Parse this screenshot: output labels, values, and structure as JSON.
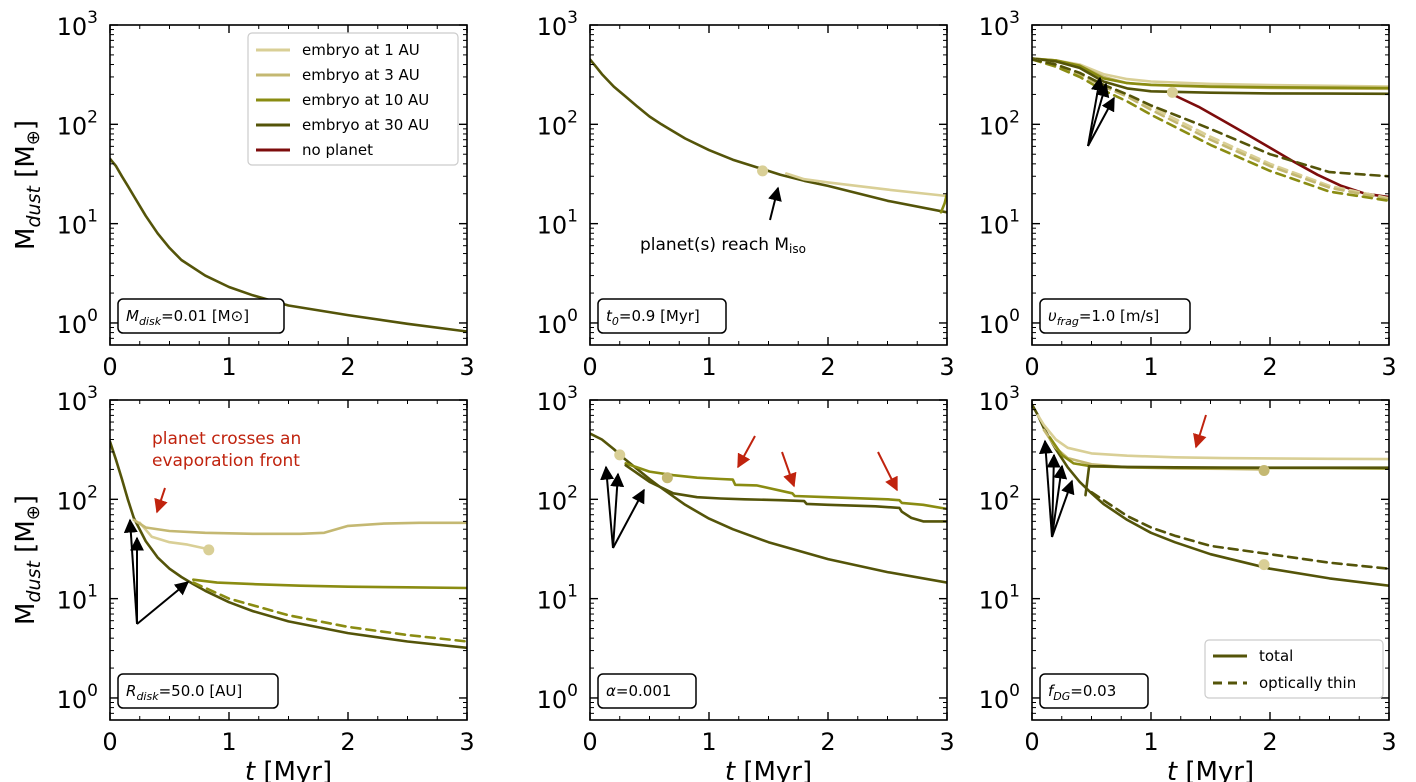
{
  "colors": {
    "embryo_1": "#d9cf96",
    "embryo_3": "#c4b872",
    "embryo_10": "#8a8c12",
    "embryo_30": "#545409",
    "no_planet": "#7d0c0c",
    "annot_red": "#c0230e",
    "annot_black": "#000000"
  },
  "axes_common": {
    "x_label_pre": "t",
    "x_label_post": " [Myr]",
    "y_label_main": "M",
    "y_label_sub": "dust",
    "y_label_post": " [M",
    "y_label_sym": "⊕",
    "y_label_end": "]",
    "x_ticks": [
      "0",
      "1",
      "2",
      "3"
    ],
    "y_ticks": [
      "10",
      "10",
      "10",
      "10"
    ],
    "y_tick_exps": [
      "0",
      "1",
      "2",
      "3"
    ]
  },
  "legend": {
    "items": [
      {
        "label": "embryo at 1 AU",
        "color_key": "embryo_1",
        "style": "solid"
      },
      {
        "label": "embryo at 3 AU",
        "color_key": "embryo_3",
        "style": "solid"
      },
      {
        "label": "embryo at 10 AU",
        "color_key": "embryo_10",
        "style": "solid"
      },
      {
        "label": "embryo at 30 AU",
        "color_key": "embryo_30",
        "style": "solid"
      },
      {
        "label": "no planet",
        "color_key": "no_planet",
        "style": "solid"
      }
    ],
    "style_items": [
      {
        "label": "total",
        "style": "solid"
      },
      {
        "label": "optically thin",
        "style": "dashed"
      }
    ]
  },
  "annotations": {
    "iso_text": "planet(s) reach M",
    "iso_sub": "iso",
    "evap_line1": "planet crosses an",
    "evap_line2": "evaporation front"
  },
  "chart_data": [
    {
      "type": "line",
      "panel": "M_disk",
      "param_label": "M",
      "param_sub": "disk",
      "param_value": "=0.01 [M",
      "param_sym": "⊙",
      "param_end": "]",
      "xlim": [
        0,
        3
      ],
      "ylim": [
        0.6,
        1000
      ],
      "yscale": "log",
      "xlabel": "",
      "ylabel": "M_dust [M_earth]",
      "series": [
        {
          "name": "total",
          "color_key": "embryo_30",
          "dash": false,
          "x": [
            0,
            0.05,
            0.1,
            0.15,
            0.2,
            0.3,
            0.4,
            0.5,
            0.6,
            0.8,
            1.0,
            1.2,
            1.5,
            2.0,
            2.5,
            3.0
          ],
          "y": [
            45,
            38,
            30,
            24,
            19,
            12,
            8.0,
            5.7,
            4.3,
            3.0,
            2.3,
            1.9,
            1.5,
            1.2,
            0.98,
            0.82
          ]
        }
      ]
    },
    {
      "type": "line",
      "panel": "t0",
      "param_label": "t",
      "param_sub": "0",
      "param_value": "=0.9 [Myr]",
      "param_sym": "",
      "param_end": "",
      "xlim": [
        0,
        3
      ],
      "ylim": [
        0.6,
        1000
      ],
      "yscale": "log",
      "series": [
        {
          "name": "total",
          "color_key": "embryo_30",
          "dash": false,
          "x": [
            0,
            0.05,
            0.1,
            0.2,
            0.3,
            0.4,
            0.5,
            0.6,
            0.8,
            1.0,
            1.2,
            1.4,
            1.6,
            1.8,
            2.0,
            2.5,
            3.0
          ],
          "y": [
            450,
            380,
            320,
            240,
            190,
            150,
            120,
            100,
            72,
            55,
            44,
            37,
            31,
            27,
            24,
            17,
            13
          ]
        },
        {
          "name": "embryo at 1 AU",
          "color_key": "embryo_1",
          "dash": false,
          "x": [
            1.65,
            1.8,
            2.0,
            2.5,
            3.0
          ],
          "y": [
            32,
            28,
            26,
            22,
            19
          ]
        },
        {
          "name": "embryo at 10 AU",
          "color_key": "embryo_10",
          "dash": false,
          "x": [
            2.95,
            2.98,
            3.0
          ],
          "y": [
            13,
            16,
            20
          ]
        }
      ],
      "markers": [
        {
          "x": 1.45,
          "y": 34,
          "color_key": "embryo_1"
        }
      ]
    },
    {
      "type": "line",
      "panel": "v_frag",
      "param_label": "υ",
      "param_sub": "frag",
      "param_value": "=1.0 [m/s]",
      "param_sym": "",
      "param_end": "",
      "xlim": [
        0,
        3
      ],
      "ylim": [
        0.6,
        1000
      ],
      "yscale": "log",
      "series": [
        {
          "name": "embryo at 1 AU",
          "color_key": "embryo_1",
          "dash": false,
          "x": [
            0,
            0.2,
            0.4,
            0.6,
            0.8,
            1.0,
            1.5,
            2.0,
            2.5,
            3.0
          ],
          "y": [
            460,
            440,
            400,
            320,
            285,
            270,
            255,
            248,
            244,
            240
          ]
        },
        {
          "name": "embryo at 3 AU",
          "color_key": "embryo_3",
          "dash": false,
          "x": [
            0,
            0.2,
            0.4,
            0.6,
            0.8,
            1.0,
            1.5,
            2.0,
            2.5,
            3.0
          ],
          "y": [
            460,
            440,
            390,
            300,
            260,
            248,
            238,
            232,
            230,
            228
          ]
        },
        {
          "name": "embryo at 10 AU",
          "color_key": "embryo_10",
          "dash": false,
          "x": [
            0,
            0.2,
            0.4,
            0.6,
            0.8,
            1.0,
            1.5,
            2.0,
            2.5,
            3.0
          ],
          "y": [
            460,
            440,
            390,
            290,
            260,
            250,
            240,
            236,
            234,
            232
          ]
        },
        {
          "name": "embryo at 30 AU",
          "color_key": "embryo_30",
          "dash": false,
          "x": [
            0,
            0.2,
            0.4,
            0.6,
            0.8,
            1.0,
            1.5,
            2.0,
            2.5,
            3.0
          ],
          "y": [
            460,
            430,
            370,
            270,
            230,
            215,
            208,
            205,
            204,
            203
          ]
        },
        {
          "name": "no planet",
          "color_key": "no_planet",
          "dash": false,
          "x": [
            1.2,
            1.4,
            1.6,
            1.8,
            2.0,
            2.2,
            2.4,
            2.6,
            2.8,
            3.0
          ],
          "y": [
            195,
            150,
            110,
            80,
            58,
            42,
            31,
            24,
            20,
            18.5
          ]
        },
        {
          "name": "embryo at 1 AU (thin)",
          "color_key": "embryo_1",
          "dash": true,
          "x": [
            0,
            0.2,
            0.4,
            0.6,
            0.8,
            1.0,
            1.5,
            2.0,
            2.5,
            3.0
          ],
          "y": [
            450,
            400,
            330,
            250,
            200,
            150,
            75,
            40,
            24,
            18
          ]
        },
        {
          "name": "embryo at 3 AU (thin)",
          "color_key": "embryo_3",
          "dash": true,
          "x": [
            0,
            0.2,
            0.4,
            0.6,
            0.8,
            1.0,
            1.5,
            2.0,
            2.5,
            3.0
          ],
          "y": [
            450,
            390,
            320,
            240,
            190,
            140,
            70,
            38,
            23,
            17.5
          ]
        },
        {
          "name": "embryo at 10 AU (thin)",
          "color_key": "embryo_10",
          "dash": true,
          "x": [
            0,
            0.2,
            0.4,
            0.6,
            0.8,
            1.0,
            1.5,
            2.0,
            2.5,
            3.0
          ],
          "y": [
            450,
            380,
            300,
            220,
            170,
            125,
            62,
            34,
            21,
            17
          ]
        },
        {
          "name": "embryo at 30 AU (thin)",
          "color_key": "embryo_30",
          "dash": true,
          "x": [
            0,
            0.2,
            0.4,
            0.6,
            0.8,
            1.0,
            1.5,
            2.0,
            2.5,
            3.0
          ],
          "y": [
            450,
            400,
            330,
            250,
            200,
            155,
            90,
            50,
            33,
            30
          ]
        }
      ],
      "markers": [
        {
          "x": 1.18,
          "y": 210,
          "color_key": "embryo_1"
        }
      ]
    },
    {
      "type": "line",
      "panel": "R_disk",
      "param_label": "R",
      "param_sub": "disk",
      "param_value": "=50.0 [AU]",
      "param_sym": "",
      "param_end": "",
      "xlim": [
        0,
        3
      ],
      "ylim": [
        0.6,
        1000
      ],
      "yscale": "log",
      "series": [
        {
          "name": "total",
          "color_key": "embryo_30",
          "dash": false,
          "x": [
            0,
            0.05,
            0.1,
            0.15,
            0.2,
            0.3,
            0.4,
            0.5,
            0.6,
            0.7,
            0.8,
            1.0,
            1.2,
            1.5,
            2.0,
            2.5,
            3.0
          ],
          "y": [
            380,
            250,
            160,
            100,
            65,
            38,
            26,
            20,
            16.5,
            14,
            12,
            9.2,
            7.5,
            5.9,
            4.5,
            3.7,
            3.2
          ]
        },
        {
          "name": "embryo at 1 AU",
          "color_key": "embryo_1",
          "dash": false,
          "x": [
            0.25,
            0.35,
            0.5,
            0.65,
            0.8,
            0.85
          ],
          "y": [
            58,
            42,
            37,
            35,
            32,
            31
          ]
        },
        {
          "name": "embryo at 3 AU",
          "color_key": "embryo_3",
          "dash": false,
          "x": [
            0.2,
            0.3,
            0.5,
            0.8,
            1.2,
            1.6,
            1.8,
            2.0,
            2.3,
            2.6,
            3.0
          ],
          "y": [
            62,
            52,
            48,
            46,
            45,
            45,
            46,
            54,
            57,
            58,
            58
          ]
        },
        {
          "name": "embryo at 10 AU",
          "color_key": "embryo_10",
          "dash": false,
          "x": [
            0.7,
            0.9,
            1.2,
            1.6,
            2.0,
            2.5,
            3.0
          ],
          "y": [
            15.5,
            14.5,
            14,
            13.5,
            13.2,
            13,
            12.8
          ]
        },
        {
          "name": "optically thin",
          "color_key": "embryo_10",
          "dash": true,
          "x": [
            0.7,
            1.0,
            1.5,
            2.0,
            2.5,
            3.0
          ],
          "y": [
            14.5,
            10,
            6.8,
            5.2,
            4.3,
            3.7
          ]
        }
      ],
      "markers": [
        {
          "x": 0.83,
          "y": 31,
          "color_key": "embryo_1"
        }
      ]
    },
    {
      "type": "line",
      "panel": "alpha",
      "param_label": "α",
      "param_sub": "",
      "param_value": "=0.001",
      "param_sym": "",
      "param_end": "",
      "xlim": [
        0,
        3
      ],
      "ylim": [
        0.6,
        1000
      ],
      "yscale": "log",
      "series": [
        {
          "name": "total",
          "color_key": "embryo_30",
          "dash": false,
          "x": [
            0,
            0.1,
            0.2,
            0.3,
            0.4,
            0.5,
            0.6,
            0.8,
            1.0,
            1.2,
            1.5,
            2.0,
            2.5,
            3.0
          ],
          "y": [
            460,
            400,
            320,
            250,
            200,
            160,
            130,
            88,
            64,
            50,
            37,
            25,
            18.5,
            14.5
          ]
        },
        {
          "name": "embryo at 10 AU",
          "color_key": "embryo_10",
          "dash": false,
          "x": [
            0.3,
            0.5,
            0.7,
            0.9,
            1.1,
            1.2,
            1.22,
            1.4,
            1.7,
            1.72,
            2.0,
            2.5,
            2.6,
            2.62,
            2.8,
            3.0
          ],
          "y": [
            230,
            190,
            175,
            165,
            160,
            158,
            140,
            138,
            115,
            108,
            105,
            100,
            98,
            92,
            88,
            80
          ]
        },
        {
          "name": "embryo at 30 AU",
          "color_key": "embryo_30",
          "dash": false,
          "x": [
            0.3,
            0.5,
            0.7,
            0.9,
            1.1,
            1.3,
            1.6,
            1.8,
            1.82,
            2.0,
            2.4,
            2.6,
            2.62,
            2.7,
            2.8,
            3.0
          ],
          "y": [
            220,
            150,
            115,
            105,
            102,
            100,
            98,
            96,
            90,
            88,
            85,
            82,
            75,
            65,
            60,
            60
          ]
        }
      ],
      "markers": [
        {
          "x": 0.65,
          "y": 165,
          "color_key": "embryo_3"
        },
        {
          "x": 0.25,
          "y": 280,
          "color_key": "embryo_1"
        }
      ]
    },
    {
      "type": "line",
      "panel": "f_DG",
      "param_label": "f",
      "param_sub": "DG",
      "param_value": "=0.03",
      "param_sym": "",
      "param_end": "",
      "xlim": [
        0,
        3
      ],
      "ylim": [
        0.6,
        1000
      ],
      "yscale": "log",
      "series": [
        {
          "name": "total",
          "color_key": "embryo_30",
          "dash": false,
          "x": [
            0,
            0.05,
            0.1,
            0.2,
            0.3,
            0.4,
            0.5,
            0.6,
            0.8,
            1.0,
            1.2,
            1.5,
            2.0,
            2.5,
            3.0
          ],
          "y": [
            900,
            700,
            520,
            320,
            210,
            150,
            115,
            90,
            62,
            46,
            37,
            28,
            20,
            16,
            13.5
          ]
        },
        {
          "name": "embryo at 1 AU",
          "color_key": "embryo_1",
          "dash": false,
          "x": [
            0.05,
            0.1,
            0.2,
            0.3,
            0.5,
            0.8,
            1.2,
            1.6,
            2.0,
            2.5,
            3.0
          ],
          "y": [
            700,
            560,
            400,
            330,
            290,
            275,
            265,
            260,
            258,
            256,
            254
          ]
        },
        {
          "name": "embryo at 3 AU",
          "color_key": "embryo_3",
          "dash": false,
          "x": [
            0.1,
            0.2,
            0.3,
            0.5,
            0.8,
            1.2,
            1.6,
            1.95
          ],
          "y": [
            500,
            330,
            260,
            225,
            210,
            205,
            203,
            200
          ]
        },
        {
          "name": "embryo at 10 AU",
          "color_key": "embryo_10",
          "dash": false,
          "x": [
            0.15,
            0.25,
            0.35,
            0.5,
            0.8,
            1.2,
            1.6,
            2.0,
            2.5,
            3.0
          ],
          "y": [
            420,
            280,
            230,
            215,
            210,
            208,
            207,
            207,
            206,
            205
          ]
        },
        {
          "name": "embryo at 30 AU",
          "color_key": "embryo_30",
          "dash": false,
          "x": [
            0.45,
            0.48,
            0.6,
            0.8,
            1.2,
            1.6,
            2.0,
            2.5,
            3.0
          ],
          "y": [
            110,
            215,
            215,
            212,
            210,
            209,
            208,
            208,
            208
          ]
        },
        {
          "name": "optically thin",
          "color_key": "embryo_30",
          "dash": true,
          "x": [
            0.5,
            0.8,
            1.0,
            1.2,
            1.5,
            2.0,
            2.5,
            3.0
          ],
          "y": [
            118,
            68,
            52,
            43,
            34,
            28,
            23,
            20
          ]
        }
      ],
      "markers": [
        {
          "x": 1.95,
          "y": 195,
          "color_key": "embryo_3"
        },
        {
          "x": 1.95,
          "y": 22,
          "color_key": "embryo_1"
        }
      ]
    }
  ]
}
